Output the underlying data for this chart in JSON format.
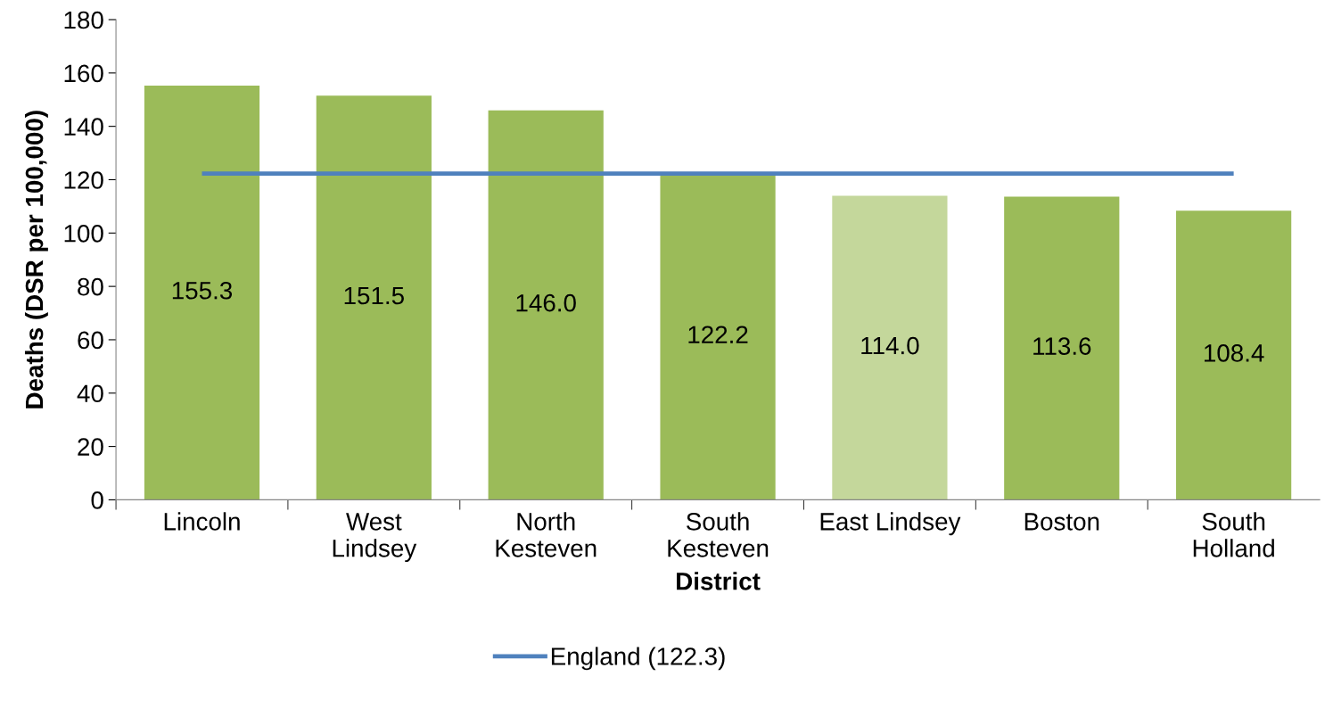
{
  "chart_data": {
    "type": "bar",
    "xlabel": "District",
    "ylabel": "Deaths (DSR per 100,000)",
    "categories": [
      "Lincoln",
      "West\nLindsey",
      "North\nKesteven",
      "South\nKesteven",
      "East Lindsey",
      "Boston",
      "South\nHolland"
    ],
    "series": [
      {
        "values": [
          155.3,
          151.5,
          146.0,
          122.2,
          114.0,
          113.6,
          108.4
        ],
        "colors": [
          "#9bbb59",
          "#9bbb59",
          "#9bbb59",
          "#9bbb59",
          "#c4d79b",
          "#9bbb59",
          "#9bbb59"
        ],
        "value_labels": [
          "155.3",
          "151.5",
          "146.0",
          "122.2",
          "114.0",
          "113.6",
          "108.4"
        ]
      },
      {
        "type": "line",
        "name": "England (122.3)",
        "color": "#4f81bd",
        "values": [
          122.3,
          122.3,
          122.3,
          122.3,
          122.3,
          122.3,
          122.3
        ]
      }
    ],
    "ylim": [
      0,
      180
    ],
    "yticks": [
      0,
      20,
      40,
      60,
      80,
      100,
      120,
      140,
      160,
      180
    ],
    "grid": false,
    "legend": "bottom",
    "marker": "none",
    "line_style": "solid"
  }
}
